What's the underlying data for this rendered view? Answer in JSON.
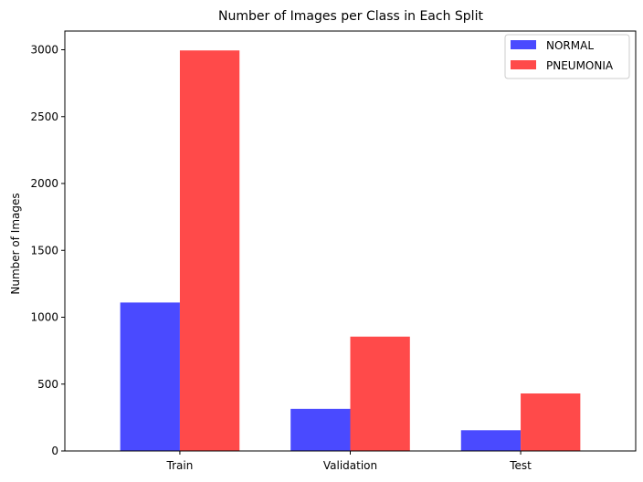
{
  "chart_data": {
    "type": "bar",
    "title": "Number of Images per Class in Each Split",
    "xlabel": "",
    "ylabel": "Number of Images",
    "categories": [
      "Train",
      "Validation",
      "Test"
    ],
    "series": [
      {
        "name": "NORMAL",
        "values": [
          1110,
          315,
          155
        ],
        "color": "#4a4aff"
      },
      {
        "name": "PNEUMONIA",
        "values": [
          2995,
          855,
          430
        ],
        "color": "#ff4a4a"
      }
    ],
    "ylim": [
      0,
      3140
    ],
    "yticks": [
      0,
      500,
      1000,
      1500,
      2000,
      2500,
      3000
    ],
    "grid": false,
    "legend_position": "top-right"
  }
}
